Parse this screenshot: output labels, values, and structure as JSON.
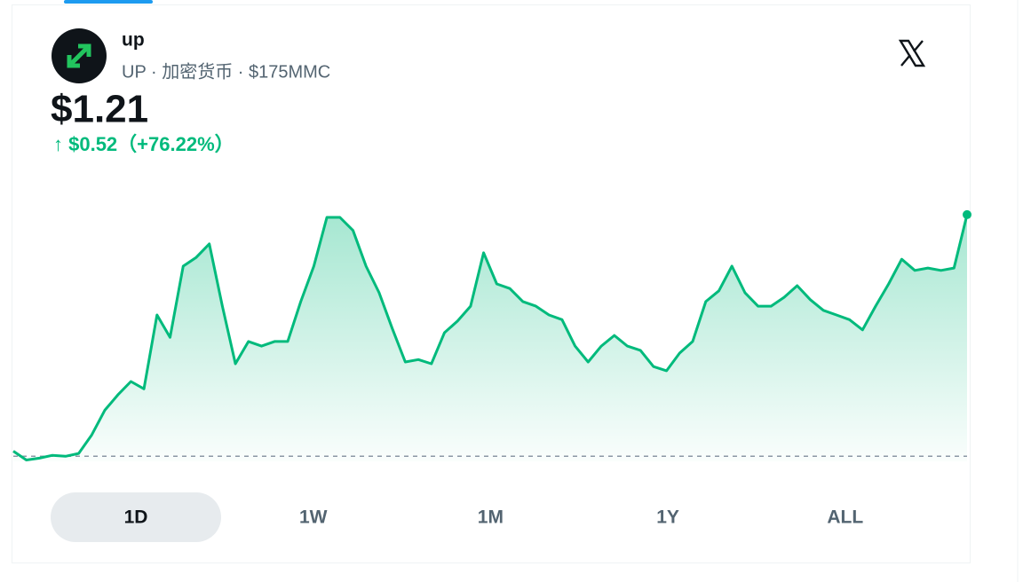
{
  "header": {
    "name": "up",
    "subtitle": "UP · 加密货币 · $175MMC",
    "price": "$1.21",
    "change": "↑ $0.52（+76.22%）"
  },
  "chart_data": {
    "type": "line",
    "color": "#00ba7c",
    "ylim": [
      0.66,
      1.29
    ],
    "reference": 0.69,
    "values": [
      0.701,
      0.682,
      0.686,
      0.692,
      0.69,
      0.696,
      0.736,
      0.789,
      0.822,
      0.851,
      0.835,
      0.994,
      0.946,
      1.099,
      1.118,
      1.147,
      1.013,
      0.889,
      0.937,
      0.927,
      0.937,
      0.937,
      1.023,
      1.099,
      1.204,
      1.204,
      1.176,
      1.099,
      1.042,
      0.965,
      0.893,
      0.898,
      0.889,
      0.956,
      0.981,
      1.013,
      1.128,
      1.061,
      1.051,
      1.023,
      1.013,
      0.994,
      0.984,
      0.927,
      0.893,
      0.927,
      0.95,
      0.927,
      0.918,
      0.883,
      0.874,
      0.912,
      0.937,
      1.023,
      1.046,
      1.099,
      1.042,
      1.013,
      1.013,
      1.032,
      1.057,
      1.027,
      1.004,
      0.994,
      0.984,
      0.962,
      1.013,
      1.061,
      1.114,
      1.09,
      1.095,
      1.09,
      1.095,
      1.21
    ]
  },
  "tabs": {
    "items": [
      "1D",
      "1W",
      "1M",
      "1Y",
      "ALL"
    ],
    "active": 0
  }
}
